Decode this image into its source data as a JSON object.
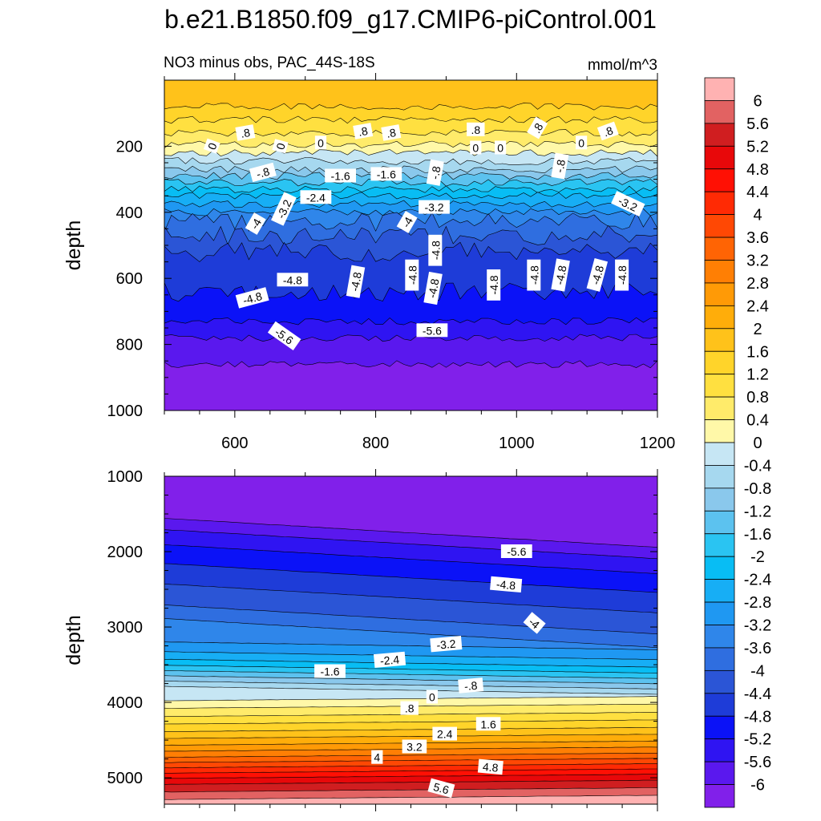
{
  "colors": {
    "levels": [
      -6,
      -5.6,
      -5.2,
      -4.8,
      -4.4,
      -4,
      -3.6,
      -3.2,
      -2.8,
      -2.4,
      -2,
      -1.6,
      -1.2,
      -0.8,
      -0.4,
      0,
      0.4,
      0.8,
      1.2,
      1.6,
      2,
      2.4,
      2.8,
      3.2,
      3.6,
      4,
      4.4,
      4.8,
      5.2,
      5.6,
      6
    ],
    "fills": [
      "#8120ea",
      "#5a18ee",
      "#2f14f2",
      "#0b12f7",
      "#1e3cd8",
      "#2b55d6",
      "#2f6ee0",
      "#2f86ea",
      "#1f98f2",
      "#17aef5",
      "#08bdf4",
      "#2ac4f2",
      "#5cc2ef",
      "#8ac8ec",
      "#a6d8ef",
      "#c6e6f4",
      "#fff8a8",
      "#ffeb6a",
      "#ffe040",
      "#ffd42a",
      "#ffc21a",
      "#ffad0a",
      "#ff9a06",
      "#ff7f04",
      "#ff6404",
      "#ff4804",
      "#ff2a04",
      "#ff1004",
      "#e8080a",
      "#d01e20",
      "#e26262",
      "#ffb2b2"
    ]
  },
  "chart_data": {
    "type": "contour",
    "title": "b.e21.B1850.f09_g17.CMIP6-piControl.001",
    "left_subtitle": "NO3 minus obs, PAC_44S-18S",
    "right_subtitle": "mmol/m^3",
    "colorbar": {
      "tick_labels": [
        "6",
        "5.6",
        "5.2",
        "4.8",
        "4.4",
        "4",
        "3.6",
        "3.2",
        "2.8",
        "2.4",
        "2",
        "1.6",
        "1.2",
        "0.8",
        "0.4",
        "0",
        "-0.4",
        "-0.8",
        "-1.2",
        "-1.6",
        "-2",
        "-2.4",
        "-2.8",
        "-3.2",
        "-3.6",
        "-4",
        "-4.4",
        "-4.8",
        "-5.2",
        "-5.6",
        "-6"
      ]
    },
    "panels": [
      {
        "ylabel": "depth",
        "xlim": [
          500,
          1200
        ],
        "ylim": [
          1000,
          0
        ],
        "x_ticks": [
          600,
          800,
          1000,
          1200
        ],
        "x_tick_labels": [
          "600",
          "800",
          "1000",
          "1200"
        ],
        "y_ticks": [
          200,
          400,
          600,
          800,
          1000
        ],
        "y_tick_labels": [
          "200",
          "400",
          "600",
          "800",
          "1000"
        ],
        "level_depths": [
          {
            "level": -6,
            "depth": 860
          },
          {
            "level": -5.6,
            "depth": 780
          },
          {
            "level": -5.2,
            "depth": 730
          },
          {
            "level": -4.8,
            "depth": 640
          },
          {
            "level": -4.4,
            "depth": 520
          },
          {
            "level": -4,
            "depth": 470
          },
          {
            "level": -3.6,
            "depth": 430
          },
          {
            "level": -3.2,
            "depth": 400
          },
          {
            "level": -2.8,
            "depth": 375
          },
          {
            "level": -2.4,
            "depth": 350
          },
          {
            "level": -2,
            "depth": 330
          },
          {
            "level": -1.6,
            "depth": 310
          },
          {
            "level": -1.2,
            "depth": 290
          },
          {
            "level": -0.8,
            "depth": 270
          },
          {
            "level": -0.4,
            "depth": 245
          },
          {
            "level": 0,
            "depth": 220
          },
          {
            "level": 0.4,
            "depth": 195
          },
          {
            "level": 0.8,
            "depth": 160
          },
          {
            "level": 1.2,
            "depth": 120
          },
          {
            "level": 1.6,
            "depth": 80
          }
        ],
        "contour_labels": [
          {
            "text": "0",
            "x": 568,
            "depth": 200,
            "angle": -70
          },
          {
            "text": ".8",
            "x": 615,
            "depth": 160,
            "angle": -10
          },
          {
            "text": "0",
            "x": 665,
            "depth": 200,
            "angle": -75
          },
          {
            "text": "0",
            "x": 722,
            "depth": 190,
            "angle": 0
          },
          {
            "text": ".8",
            "x": 782,
            "depth": 155,
            "angle": -10
          },
          {
            "text": ".8",
            "x": 822,
            "depth": 160,
            "angle": -10
          },
          {
            "text": ".8",
            "x": 942,
            "depth": 150,
            "angle": 0
          },
          {
            "text": "0",
            "x": 942,
            "depth": 205,
            "angle": 0
          },
          {
            "text": "0",
            "x": 977,
            "depth": 205,
            "angle": 0
          },
          {
            "text": ".8",
            "x": 1030,
            "depth": 145,
            "angle": -60
          },
          {
            "text": "0",
            "x": 1092,
            "depth": 190,
            "angle": 0
          },
          {
            "text": ".8",
            "x": 1130,
            "depth": 155,
            "angle": -20
          },
          {
            "text": "-.8",
            "x": 640,
            "depth": 280,
            "angle": -15
          },
          {
            "text": "-1.6",
            "x": 750,
            "depth": 290,
            "angle": 0
          },
          {
            "text": "-1.6",
            "x": 815,
            "depth": 285,
            "angle": 0
          },
          {
            "text": "-.8",
            "x": 885,
            "depth": 280,
            "angle": -80
          },
          {
            "text": "-.8",
            "x": 1062,
            "depth": 260,
            "angle": -80
          },
          {
            "text": "-2.4",
            "x": 715,
            "depth": 355,
            "angle": 0
          },
          {
            "text": "-3.2",
            "x": 670,
            "depth": 390,
            "angle": -65
          },
          {
            "text": "-3.2",
            "x": 883,
            "depth": 385,
            "angle": 0
          },
          {
            "text": "-3.2",
            "x": 1158,
            "depth": 375,
            "angle": 25
          },
          {
            "text": "-4",
            "x": 630,
            "depth": 435,
            "angle": -60
          },
          {
            "text": "-4",
            "x": 845,
            "depth": 430,
            "angle": -60
          },
          {
            "text": "-4.8",
            "x": 885,
            "depth": 515,
            "angle": -90
          },
          {
            "text": "-4.8",
            "x": 682,
            "depth": 605,
            "angle": 0
          },
          {
            "text": "-4.8",
            "x": 625,
            "depth": 660,
            "angle": -15
          },
          {
            "text": "-4.8",
            "x": 772,
            "depth": 610,
            "angle": -80
          },
          {
            "text": "-4.8",
            "x": 852,
            "depth": 590,
            "angle": -90
          },
          {
            "text": "-4.8",
            "x": 882,
            "depth": 630,
            "angle": -80
          },
          {
            "text": "-4.8",
            "x": 968,
            "depth": 620,
            "angle": -90
          },
          {
            "text": "-4.8",
            "x": 1025,
            "depth": 590,
            "angle": -90
          },
          {
            "text": "-4.8",
            "x": 1063,
            "depth": 590,
            "angle": -80
          },
          {
            "text": "-4.8",
            "x": 1115,
            "depth": 590,
            "angle": -75
          },
          {
            "text": "-4.8",
            "x": 1150,
            "depth": 590,
            "angle": -90
          },
          {
            "text": "-5.6",
            "x": 670,
            "depth": 775,
            "angle": 35
          },
          {
            "text": "-5.6",
            "x": 880,
            "depth": 758,
            "angle": 0
          }
        ]
      },
      {
        "ylabel": "depth",
        "xlim": [
          500,
          1200
        ],
        "ylim": [
          5350,
          1000
        ],
        "y_ticks": [
          1000,
          2000,
          3000,
          4000,
          5000
        ],
        "y_tick_labels": [
          "1000",
          "2000",
          "3000",
          "4000",
          "5000"
        ],
        "level_depths": [
          {
            "level": -6,
            "depth": 1750
          },
          {
            "level": -5.6,
            "depth": 1900
          },
          {
            "level": -5.2,
            "depth": 2100
          },
          {
            "level": -4.8,
            "depth": 2350
          },
          {
            "level": -4.4,
            "depth": 2620
          },
          {
            "level": -4,
            "depth": 2900
          },
          {
            "level": -3.6,
            "depth": 3080
          },
          {
            "level": -3.2,
            "depth": 3250
          },
          {
            "level": -2.8,
            "depth": 3380
          },
          {
            "level": -2.4,
            "depth": 3480
          },
          {
            "level": -2,
            "depth": 3560
          },
          {
            "level": -1.6,
            "depth": 3630
          },
          {
            "level": -1.2,
            "depth": 3700
          },
          {
            "level": -0.8,
            "depth": 3770
          },
          {
            "level": -0.4,
            "depth": 3840
          },
          {
            "level": 0,
            "depth": 3950
          },
          {
            "level": 0.4,
            "depth": 4050
          },
          {
            "level": 0.8,
            "depth": 4160
          },
          {
            "level": 1.2,
            "depth": 4260
          },
          {
            "level": 1.6,
            "depth": 4360
          },
          {
            "level": 2,
            "depth": 4450
          },
          {
            "level": 2.4,
            "depth": 4540
          },
          {
            "level": 2.8,
            "depth": 4620
          },
          {
            "level": 3.2,
            "depth": 4700
          },
          {
            "level": 3.6,
            "depth": 4770
          },
          {
            "level": 4,
            "depth": 4840
          },
          {
            "level": 4.4,
            "depth": 4910
          },
          {
            "level": 4.8,
            "depth": 4980
          },
          {
            "level": 5.2,
            "depth": 5060
          },
          {
            "level": 5.6,
            "depth": 5160
          },
          {
            "level": 6,
            "depth": 5260
          }
        ],
        "contour_labels": [
          {
            "text": "-5.6",
            "x": 1000,
            "depth": 2000,
            "angle": 0
          },
          {
            "text": "-4.8",
            "x": 985,
            "depth": 2440,
            "angle": 5
          },
          {
            "text": "-4",
            "x": 1025,
            "depth": 2950,
            "angle": 40
          },
          {
            "text": "-3.2",
            "x": 900,
            "depth": 3230,
            "angle": -5
          },
          {
            "text": "-2.4",
            "x": 820,
            "depth": 3440,
            "angle": -5
          },
          {
            "text": "-1.6",
            "x": 735,
            "depth": 3590,
            "angle": 0
          },
          {
            "text": "-.8",
            "x": 935,
            "depth": 3780,
            "angle": -5
          },
          {
            "text": "0",
            "x": 880,
            "depth": 3930,
            "angle": 0
          },
          {
            "text": ".8",
            "x": 848,
            "depth": 4080,
            "angle": 0
          },
          {
            "text": "1.6",
            "x": 960,
            "depth": 4290,
            "angle": 0
          },
          {
            "text": "2.4",
            "x": 898,
            "depth": 4420,
            "angle": 0
          },
          {
            "text": "3.2",
            "x": 855,
            "depth": 4590,
            "angle": 0
          },
          {
            "text": "4",
            "x": 802,
            "depth": 4730,
            "angle": 0
          },
          {
            "text": "4.8",
            "x": 963,
            "depth": 4860,
            "angle": 5
          },
          {
            "text": "5.6",
            "x": 893,
            "depth": 5140,
            "angle": 15
          }
        ]
      }
    ]
  }
}
